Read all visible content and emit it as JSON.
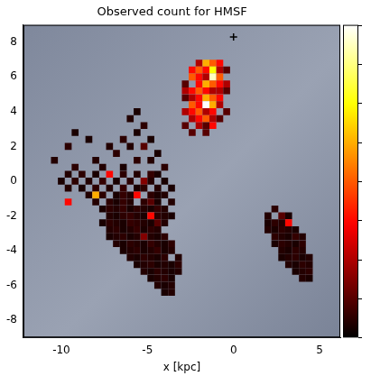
{
  "chart_data": {
    "type": "heatmap",
    "title": "Observed count for HMSF",
    "x_label": "x [kpc]",
    "xlim": [
      -12.2,
      6.2
    ],
    "ylim": [
      -9,
      9
    ],
    "xticks": [
      -10,
      -5,
      0,
      5
    ],
    "yticks": [
      -8,
      -6,
      -4,
      -2,
      0,
      2,
      4,
      6,
      8
    ],
    "grid": false,
    "cell_size": 0.4,
    "colorbar": {
      "range": [
        0,
        8
      ],
      "ticks": [
        0,
        1,
        2,
        3,
        4,
        5,
        6,
        7,
        8
      ]
    },
    "markers": [
      {
        "x": 0,
        "y": 8.3,
        "marker": "plus"
      }
    ],
    "cells": [
      [
        -2.0,
        6.8,
        2
      ],
      [
        -1.6,
        6.8,
        5
      ],
      [
        -1.2,
        6.8,
        4
      ],
      [
        -0.8,
        6.8,
        3
      ],
      [
        -2.4,
        6.4,
        3
      ],
      [
        -2.0,
        6.4,
        4
      ],
      [
        -1.6,
        6.4,
        3
      ],
      [
        -1.2,
        6.4,
        6
      ],
      [
        -0.8,
        6.4,
        2
      ],
      [
        -0.4,
        6.4,
        1
      ],
      [
        -2.4,
        6.0,
        4
      ],
      [
        -2.0,
        6.0,
        3
      ],
      [
        -1.6,
        6.0,
        2
      ],
      [
        -1.2,
        6.0,
        7.5
      ],
      [
        -0.8,
        6.0,
        4
      ],
      [
        -2.8,
        5.6,
        1
      ],
      [
        -2.0,
        5.6,
        3
      ],
      [
        -1.6,
        5.6,
        5
      ],
      [
        -1.2,
        5.6,
        4
      ],
      [
        -0.8,
        5.6,
        3
      ],
      [
        -0.4,
        5.6,
        2
      ],
      [
        -2.8,
        5.2,
        2
      ],
      [
        -2.4,
        5.2,
        3
      ],
      [
        -2.0,
        5.2,
        4
      ],
      [
        -1.6,
        5.2,
        3
      ],
      [
        -1.2,
        5.2,
        2
      ],
      [
        -0.8,
        5.2,
        2
      ],
      [
        -0.4,
        5.2,
        1
      ],
      [
        -2.8,
        4.8,
        1
      ],
      [
        -2.4,
        4.8,
        2
      ],
      [
        -2.0,
        4.8,
        3
      ],
      [
        -1.6,
        4.8,
        5
      ],
      [
        -1.2,
        4.8,
        4
      ],
      [
        -0.8,
        4.8,
        3
      ],
      [
        -2.4,
        4.4,
        4
      ],
      [
        -2.0,
        4.4,
        3
      ],
      [
        -1.6,
        4.4,
        8
      ],
      [
        -1.2,
        4.4,
        5
      ],
      [
        -0.8,
        4.4,
        2
      ],
      [
        -2.8,
        4.0,
        2
      ],
      [
        -2.4,
        4.0,
        3
      ],
      [
        -2.0,
        4.0,
        4
      ],
      [
        -1.6,
        4.0,
        2
      ],
      [
        -1.2,
        4.0,
        3
      ],
      [
        -0.4,
        4.0,
        1
      ],
      [
        -2.4,
        3.6,
        2
      ],
      [
        -2.0,
        3.6,
        3
      ],
      [
        -1.6,
        3.6,
        4
      ],
      [
        -1.2,
        3.6,
        2
      ],
      [
        -0.8,
        3.6,
        1
      ],
      [
        -2.8,
        3.2,
        1
      ],
      [
        -2.0,
        3.2,
        2
      ],
      [
        -1.6,
        3.2,
        1
      ],
      [
        -1.2,
        3.2,
        3
      ],
      [
        -2.4,
        2.8,
        1
      ],
      [
        -1.6,
        2.8,
        1
      ],
      [
        -5.6,
        4.0,
        0.3
      ],
      [
        -6.0,
        3.6,
        0.4
      ],
      [
        -5.2,
        3.2,
        0.5
      ],
      [
        -5.6,
        2.8,
        0.3
      ],
      [
        -6.4,
        2.4,
        0.5
      ],
      [
        -4.8,
        2.4,
        0.3
      ],
      [
        -7.2,
        2.0,
        0.4
      ],
      [
        -6.0,
        2.0,
        0.4
      ],
      [
        -5.2,
        2.0,
        1
      ],
      [
        -4.4,
        1.6,
        0.3
      ],
      [
        -6.8,
        1.6,
        0.5
      ],
      [
        -8.0,
        1.2,
        0.4
      ],
      [
        -5.6,
        1.2,
        0.5
      ],
      [
        -4.8,
        1.2,
        0.4
      ],
      [
        -9.2,
        2.8,
        0.3
      ],
      [
        -9.6,
        2.0,
        0.5
      ],
      [
        -8.4,
        2.4,
        0.3
      ],
      [
        -10.4,
        1.2,
        0.4
      ],
      [
        -9.2,
        0.8,
        0.5
      ],
      [
        -7.6,
        0.8,
        0.4
      ],
      [
        -6.4,
        0.8,
        0.3
      ],
      [
        -4.0,
        0.8,
        0.5
      ],
      [
        -9.6,
        0.4,
        0.4
      ],
      [
        -8.8,
        0.4,
        0.5
      ],
      [
        -8.0,
        0.4,
        0.3
      ],
      [
        -7.2,
        0.4,
        3
      ],
      [
        -6.4,
        0.4,
        0.5
      ],
      [
        -5.6,
        0.4,
        0.4
      ],
      [
        -4.8,
        0.4,
        0.6
      ],
      [
        -4.4,
        0.4,
        0.3
      ],
      [
        -10.0,
        0.0,
        0.3
      ],
      [
        -9.2,
        0.0,
        0.5
      ],
      [
        -8.4,
        0.0,
        0.4
      ],
      [
        -7.6,
        0.0,
        0.6
      ],
      [
        -6.8,
        0.0,
        0.3
      ],
      [
        -6.0,
        0.0,
        0.5
      ],
      [
        -5.2,
        0.0,
        1.5
      ],
      [
        -4.8,
        0.0,
        0.4
      ],
      [
        -4.0,
        0.0,
        0.3
      ],
      [
        -9.6,
        -0.4,
        0.4
      ],
      [
        -8.8,
        -0.4,
        0.3
      ],
      [
        -8.0,
        -0.4,
        0.5
      ],
      [
        -7.2,
        -0.4,
        0.4
      ],
      [
        -6.4,
        -0.4,
        0.6
      ],
      [
        -5.6,
        -0.4,
        0.3
      ],
      [
        -5.2,
        -0.4,
        0.5
      ],
      [
        -4.4,
        -0.4,
        0.4
      ],
      [
        -3.6,
        -0.4,
        0.3
      ],
      [
        -8.4,
        -0.8,
        0.4
      ],
      [
        -8.0,
        -0.8,
        5
      ],
      [
        -7.6,
        -0.8,
        0.5
      ],
      [
        -6.8,
        -0.8,
        0.3
      ],
      [
        -6.4,
        -0.8,
        0.6
      ],
      [
        -6.0,
        -0.8,
        0.4
      ],
      [
        -5.6,
        -0.8,
        3
      ],
      [
        -4.8,
        -0.8,
        0.5
      ],
      [
        -4.4,
        -0.8,
        0.3
      ],
      [
        -4.0,
        -0.8,
        0.4
      ],
      [
        -9.6,
        -1.2,
        3
      ],
      [
        -8.0,
        -1.2,
        0.4
      ],
      [
        -7.2,
        -1.2,
        0.5
      ],
      [
        -6.8,
        -1.2,
        0.3
      ],
      [
        -6.4,
        -1.2,
        0.6
      ],
      [
        -6.0,
        -1.2,
        0.4
      ],
      [
        -5.2,
        -1.2,
        0.5
      ],
      [
        -4.8,
        -1.2,
        1
      ],
      [
        -4.4,
        -1.2,
        0.3
      ],
      [
        -3.6,
        -1.2,
        0.4
      ],
      [
        -7.6,
        -1.6,
        0.3
      ],
      [
        -7.2,
        -1.6,
        0.5
      ],
      [
        -6.8,
        -1.6,
        0.4
      ],
      [
        -6.4,
        -1.6,
        0.6
      ],
      [
        -6.0,
        -1.6,
        0.3
      ],
      [
        -5.6,
        -1.6,
        0.5
      ],
      [
        -5.2,
        -1.6,
        0.4
      ],
      [
        -4.8,
        -1.6,
        0.3
      ],
      [
        -4.4,
        -1.6,
        0.6
      ],
      [
        -4.0,
        -1.6,
        0.4
      ],
      [
        -7.2,
        -2.0,
        0.4
      ],
      [
        -6.8,
        -2.0,
        0.3
      ],
      [
        -6.4,
        -2.0,
        0.5
      ],
      [
        -6.0,
        -2.0,
        0.6
      ],
      [
        -5.6,
        -2.0,
        0.4
      ],
      [
        -5.2,
        -2.0,
        0.3
      ],
      [
        -4.8,
        -2.0,
        3
      ],
      [
        -4.4,
        -2.0,
        0.5
      ],
      [
        -4.0,
        -2.0,
        0.4
      ],
      [
        -3.6,
        -2.0,
        0.3
      ],
      [
        -7.6,
        -2.4,
        0.3
      ],
      [
        -7.2,
        -2.4,
        0.5
      ],
      [
        -6.8,
        -2.4,
        0.4
      ],
      [
        -6.4,
        -2.4,
        0.3
      ],
      [
        -6.0,
        -2.4,
        0.6
      ],
      [
        -5.6,
        -2.4,
        0.5
      ],
      [
        -5.2,
        -2.4,
        0.4
      ],
      [
        -4.8,
        -2.4,
        0.3
      ],
      [
        -4.4,
        -2.4,
        1
      ],
      [
        -4.0,
        -2.4,
        0.4
      ],
      [
        -7.2,
        -2.8,
        0.4
      ],
      [
        -6.8,
        -2.8,
        0.5
      ],
      [
        -6.4,
        -2.8,
        0.3
      ],
      [
        -6.0,
        -2.8,
        0.4
      ],
      [
        -5.6,
        -2.8,
        0.6
      ],
      [
        -5.2,
        -2.8,
        0.3
      ],
      [
        -4.8,
        -2.8,
        0.5
      ],
      [
        -4.4,
        -2.8,
        0.4
      ],
      [
        -7.2,
        -3.2,
        0.3
      ],
      [
        -6.8,
        -3.2,
        0.4
      ],
      [
        -6.4,
        -3.2,
        0.5
      ],
      [
        -6.0,
        -3.2,
        0.3
      ],
      [
        -5.6,
        -3.2,
        0.4
      ],
      [
        -5.2,
        -3.2,
        1.5
      ],
      [
        -4.8,
        -3.2,
        0.4
      ],
      [
        -4.4,
        -3.2,
        0.3
      ],
      [
        -4.0,
        -3.2,
        0.5
      ],
      [
        -6.8,
        -3.6,
        0.4
      ],
      [
        -6.4,
        -3.6,
        0.3
      ],
      [
        -6.0,
        -3.6,
        0.5
      ],
      [
        -5.6,
        -3.6,
        0.4
      ],
      [
        -5.2,
        -3.6,
        0.3
      ],
      [
        -4.8,
        -3.6,
        0.6
      ],
      [
        -4.4,
        -3.6,
        0.4
      ],
      [
        -4.0,
        -3.6,
        0.3
      ],
      [
        -3.6,
        -3.6,
        0.5
      ],
      [
        -6.4,
        -4.0,
        0.3
      ],
      [
        -6.0,
        -4.0,
        0.4
      ],
      [
        -5.6,
        -4.0,
        0.5
      ],
      [
        -5.2,
        -4.0,
        0.3
      ],
      [
        -4.8,
        -4.0,
        0.4
      ],
      [
        -4.4,
        -4.0,
        0.6
      ],
      [
        -4.0,
        -4.0,
        0.3
      ],
      [
        -3.6,
        -4.0,
        0.4
      ],
      [
        -6.0,
        -4.4,
        0.4
      ],
      [
        -5.6,
        -4.4,
        0.3
      ],
      [
        -5.2,
        -4.4,
        0.5
      ],
      [
        -4.8,
        -4.4,
        0.4
      ],
      [
        -4.4,
        -4.4,
        0.3
      ],
      [
        -4.0,
        -4.4,
        0.5
      ],
      [
        -3.2,
        -4.4,
        0.4
      ],
      [
        -5.6,
        -4.8,
        0.3
      ],
      [
        -5.2,
        -4.8,
        0.4
      ],
      [
        -4.8,
        -4.8,
        0.5
      ],
      [
        -4.4,
        -4.8,
        0.3
      ],
      [
        -4.0,
        -4.8,
        0.4
      ],
      [
        -3.6,
        -4.8,
        0.3
      ],
      [
        -3.2,
        -4.8,
        0.5
      ],
      [
        -5.2,
        -5.2,
        0.4
      ],
      [
        -4.8,
        -5.2,
        0.3
      ],
      [
        -4.4,
        -5.2,
        0.5
      ],
      [
        -4.0,
        -5.2,
        0.4
      ],
      [
        -3.6,
        -5.2,
        0.3
      ],
      [
        -3.2,
        -5.2,
        0.4
      ],
      [
        -4.8,
        -5.6,
        0.3
      ],
      [
        -4.4,
        -5.6,
        0.4
      ],
      [
        -4.0,
        -5.6,
        0.5
      ],
      [
        -3.6,
        -5.6,
        0.3
      ],
      [
        -4.4,
        -6.0,
        0.4
      ],
      [
        -4.0,
        -6.0,
        0.3
      ],
      [
        -3.6,
        -6.0,
        0.4
      ],
      [
        -4.0,
        -6.4,
        0.3
      ],
      [
        -3.6,
        -6.4,
        0.4
      ],
      [
        2.4,
        -1.6,
        0.5
      ],
      [
        2.0,
        -2.0,
        0.4
      ],
      [
        2.8,
        -2.0,
        1
      ],
      [
        3.2,
        -2.0,
        0.3
      ],
      [
        2.0,
        -2.4,
        0.3
      ],
      [
        2.4,
        -2.4,
        0.5
      ],
      [
        2.8,
        -2.4,
        0.4
      ],
      [
        3.2,
        -2.4,
        3
      ],
      [
        2.0,
        -2.8,
        0.4
      ],
      [
        2.4,
        -2.8,
        0.3
      ],
      [
        2.8,
        -2.8,
        0.5
      ],
      [
        3.2,
        -2.8,
        0.4
      ],
      [
        3.6,
        -2.8,
        0.3
      ],
      [
        2.4,
        -3.2,
        0.5
      ],
      [
        2.8,
        -3.2,
        0.4
      ],
      [
        3.2,
        -3.2,
        0.3
      ],
      [
        3.6,
        -3.2,
        0.6
      ],
      [
        4.0,
        -3.2,
        0.4
      ],
      [
        2.4,
        -3.6,
        0.3
      ],
      [
        2.8,
        -3.6,
        0.5
      ],
      [
        3.2,
        -3.6,
        0.4
      ],
      [
        3.6,
        -3.6,
        0.3
      ],
      [
        4.0,
        -3.6,
        0.5
      ],
      [
        2.8,
        -4.0,
        0.4
      ],
      [
        3.2,
        -4.0,
        0.3
      ],
      [
        3.6,
        -4.0,
        0.5
      ],
      [
        4.0,
        -4.0,
        0.4
      ],
      [
        2.8,
        -4.4,
        0.3
      ],
      [
        3.2,
        -4.4,
        0.4
      ],
      [
        3.6,
        -4.4,
        0.5
      ],
      [
        4.0,
        -4.4,
        0.3
      ],
      [
        4.4,
        -4.4,
        0.4
      ],
      [
        3.2,
        -4.8,
        0.4
      ],
      [
        3.6,
        -4.8,
        0.3
      ],
      [
        4.0,
        -4.8,
        0.5
      ],
      [
        4.4,
        -4.8,
        0.4
      ],
      [
        3.6,
        -5.2,
        0.3
      ],
      [
        4.0,
        -5.2,
        0.4
      ],
      [
        4.4,
        -5.2,
        0.5
      ],
      [
        4.0,
        -5.6,
        0.4
      ],
      [
        4.4,
        -5.6,
        0.3
      ]
    ]
  }
}
